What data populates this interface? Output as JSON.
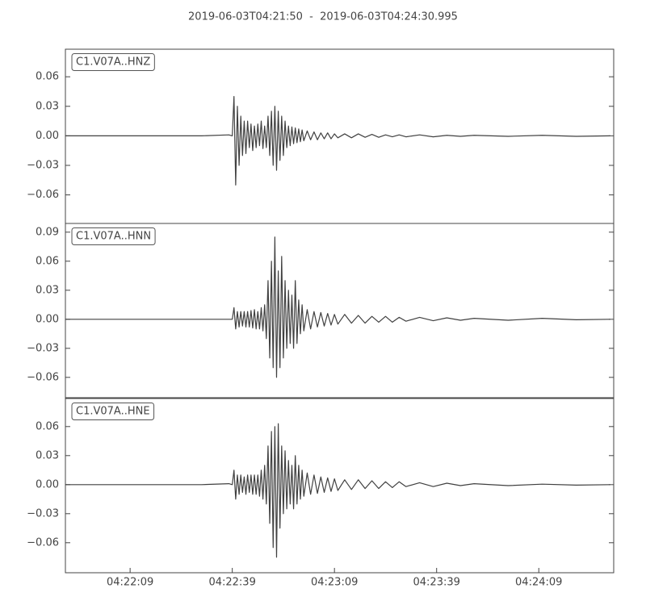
{
  "title": "2019-06-03T04:21:50  -  2019-06-03T04:24:30.995",
  "chart_data": [
    {
      "type": "line",
      "label": "C1.V07A..HNZ",
      "color": "#404040",
      "x": [
        0,
        10,
        20,
        30,
        40,
        48,
        49,
        49.5,
        50,
        50.5,
        51,
        51.5,
        52,
        52.5,
        53,
        53.5,
        54,
        54.5,
        55,
        55.5,
        56,
        56.5,
        57,
        57.5,
        58,
        58.5,
        59,
        59.5,
        60,
        60.5,
        61,
        61.5,
        62,
        62.5,
        63,
        63.5,
        64,
        64.5,
        65,
        65.5,
        66,
        66.5,
        67,
        67.5,
        68,
        68.5,
        69,
        69.5,
        70,
        71,
        72,
        73,
        74,
        75,
        76,
        77,
        78,
        79,
        80,
        82,
        84,
        86,
        88,
        90,
        92,
        94,
        96,
        98,
        100,
        104,
        108,
        112,
        116,
        120,
        130,
        140,
        150,
        160
      ],
      "values": [
        0,
        0,
        0,
        0,
        0,
        0.001,
        0,
        0.04,
        -0.05,
        0.03,
        -0.03,
        0.02,
        -0.02,
        0.015,
        -0.018,
        0.015,
        -0.012,
        0.012,
        -0.015,
        0.01,
        -0.012,
        0.012,
        -0.01,
        0.015,
        -0.013,
        0.01,
        -0.012,
        0.02,
        -0.02,
        0.025,
        -0.03,
        0.03,
        -0.035,
        0.025,
        -0.025,
        0.02,
        -0.02,
        0.015,
        -0.012,
        0.01,
        -0.01,
        0.009,
        -0.008,
        0.008,
        -0.007,
        0.007,
        -0.006,
        0.006,
        -0.005,
        0.005,
        -0.004,
        0.004,
        -0.004,
        0.003,
        -0.003,
        0.003,
        -0.003,
        0.002,
        -0.002,
        0.002,
        -0.002,
        0.002,
        -0.0015,
        0.0015,
        -0.0015,
        0.001,
        -0.001,
        0.001,
        -0.001,
        0.001,
        -0.001,
        0.0005,
        -0.0005,
        0.0005,
        -0.0005,
        0.0005,
        -0.0005,
        0
      ],
      "xlim": [
        0,
        160.995
      ],
      "ylim": [
        -0.089,
        0.088
      ],
      "yticks": [
        {
          "value": -0.06,
          "label": "−0.06"
        },
        {
          "value": -0.03,
          "label": "−0.03"
        },
        {
          "value": 0,
          "label": "0.00"
        },
        0.03,
        0.06
      ]
    },
    {
      "type": "line",
      "label": "C1.V07A..HNN",
      "color": "#404040",
      "x": [
        0,
        10,
        20,
        30,
        40,
        48,
        49,
        49.5,
        50,
        50.5,
        51,
        51.5,
        52,
        52.5,
        53,
        53.5,
        54,
        54.5,
        55,
        55.5,
        56,
        56.5,
        57,
        57.5,
        58,
        58.5,
        59,
        59.5,
        60,
        60.5,
        61,
        61.5,
        62,
        62.5,
        63,
        63.5,
        64,
        64.5,
        65,
        65.5,
        66,
        66.5,
        67,
        67.5,
        68,
        68.5,
        69,
        69.5,
        70,
        71,
        72,
        73,
        74,
        75,
        76,
        77,
        78,
        79,
        80,
        82,
        84,
        86,
        88,
        90,
        92,
        94,
        96,
        98,
        100,
        104,
        108,
        112,
        116,
        120,
        130,
        140,
        150,
        160
      ],
      "values": [
        0,
        0,
        0,
        0,
        0,
        0,
        0,
        0.012,
        -0.01,
        0.008,
        -0.008,
        0.008,
        -0.007,
        0.008,
        -0.008,
        0.008,
        -0.008,
        0.009,
        -0.009,
        0.01,
        -0.01,
        0.008,
        -0.01,
        0.012,
        -0.012,
        0.015,
        -0.02,
        0.04,
        -0.04,
        0.06,
        -0.05,
        0.085,
        -0.06,
        0.05,
        -0.05,
        0.065,
        -0.04,
        0.04,
        -0.03,
        0.03,
        -0.025,
        0.025,
        -0.03,
        0.04,
        -0.025,
        0.02,
        -0.015,
        0.015,
        -0.012,
        0.01,
        -0.01,
        0.008,
        -0.008,
        0.007,
        -0.007,
        0.006,
        -0.006,
        0.005,
        -0.005,
        0.005,
        -0.004,
        0.004,
        -0.004,
        0.003,
        -0.003,
        0.003,
        -0.003,
        0.002,
        -0.002,
        0.002,
        -0.0015,
        0.0015,
        -0.001,
        0.001,
        -0.001,
        0.001,
        -0.0005,
        0
      ],
      "xlim": [
        0,
        160.995
      ],
      "ylim": [
        -0.081,
        0.099
      ],
      "yticks": [
        {
          "value": -0.06,
          "label": "−0.06"
        },
        {
          "value": -0.03,
          "label": "−0.03"
        },
        {
          "value": 0,
          "label": "0.00"
        },
        0.03,
        0.06,
        0.09
      ]
    },
    {
      "type": "line",
      "label": "C1.V07A..HNE",
      "color": "#404040",
      "x": [
        0,
        10,
        20,
        30,
        40,
        48,
        49,
        49.5,
        50,
        50.5,
        51,
        51.5,
        52,
        52.5,
        53,
        53.5,
        54,
        54.5,
        55,
        55.5,
        56,
        56.5,
        57,
        57.5,
        58,
        58.5,
        59,
        59.5,
        60,
        60.5,
        61,
        61.5,
        62,
        62.5,
        63,
        63.5,
        64,
        64.5,
        65,
        65.5,
        66,
        66.5,
        67,
        67.5,
        68,
        68.5,
        69,
        69.5,
        70,
        71,
        72,
        73,
        74,
        75,
        76,
        77,
        78,
        79,
        80,
        82,
        84,
        86,
        88,
        90,
        92,
        94,
        96,
        98,
        100,
        104,
        108,
        112,
        116,
        120,
        130,
        140,
        150,
        160
      ],
      "values": [
        0,
        0,
        0,
        0,
        0,
        0.001,
        0,
        0.015,
        -0.015,
        0.01,
        -0.01,
        0.01,
        -0.008,
        0.008,
        -0.01,
        0.01,
        -0.008,
        0.01,
        -0.01,
        0.01,
        -0.01,
        0.01,
        -0.012,
        0.015,
        -0.015,
        0.02,
        -0.02,
        0.04,
        -0.04,
        0.055,
        -0.065,
        0.06,
        -0.075,
        0.063,
        -0.045,
        0.04,
        -0.03,
        0.035,
        -0.025,
        0.025,
        -0.02,
        0.02,
        -0.025,
        0.03,
        -0.02,
        0.02,
        -0.015,
        0.015,
        -0.012,
        0.012,
        -0.01,
        0.01,
        -0.009,
        0.008,
        -0.008,
        0.007,
        -0.007,
        0.006,
        -0.006,
        0.005,
        -0.005,
        0.005,
        -0.004,
        0.004,
        -0.004,
        0.003,
        -0.003,
        0.003,
        -0.002,
        0.002,
        -0.002,
        0.0015,
        -0.001,
        0.001,
        -0.001,
        0.0005,
        -0.0005,
        0
      ],
      "xlim": [
        0,
        160.995
      ],
      "ylim": [
        -0.091,
        0.089
      ],
      "yticks": [
        {
          "value": -0.06,
          "label": "−0.06"
        },
        {
          "value": -0.03,
          "label": "−0.03"
        },
        {
          "value": 0,
          "label": "0.00"
        },
        0.03,
        0.06
      ],
      "xticks": [
        {
          "value": 19,
          "label": "04:22:09"
        },
        {
          "value": 49,
          "label": "04:22:39"
        },
        {
          "value": 79,
          "label": "04:23:09"
        },
        {
          "value": 109,
          "label": "04:23:39"
        },
        {
          "value": 139,
          "label": "04:24:09"
        }
      ]
    }
  ]
}
